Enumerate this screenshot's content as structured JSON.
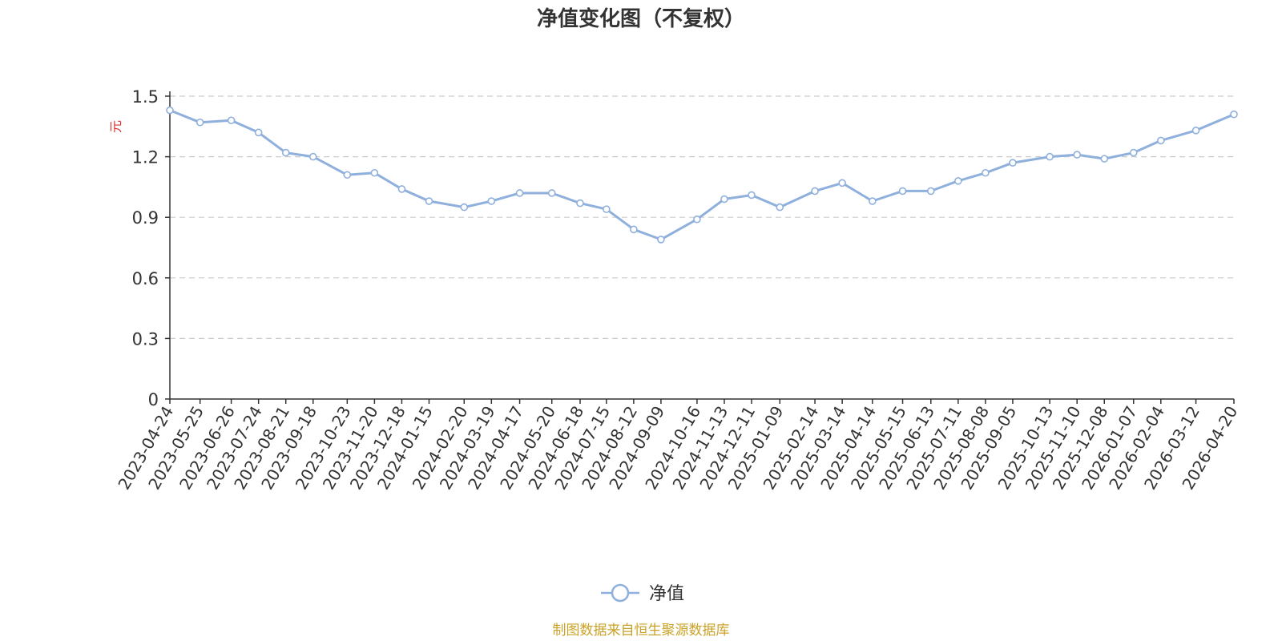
{
  "colors": {
    "line": "#8fb0dc",
    "unit": "#e03030",
    "source": "#c9a227",
    "grid": "#cccccc",
    "axis": "#333333"
  },
  "chart_data": {
    "type": "line",
    "title": "净值变化图（不复权）",
    "ylabel": "元",
    "ylim": [
      0,
      1.5
    ],
    "yticks": [
      "0",
      "0.3",
      "0.6",
      "0.9",
      "1.2",
      "1.5"
    ],
    "grid": true,
    "legend_position": "bottom-center",
    "x_labels": [
      "2023-04-24",
      "2023-05-25",
      "2023-06-26",
      "2023-07-24",
      "2023-08-21",
      "2023-09-18",
      "2023-10-23",
      "2023-11-20",
      "2023-12-18",
      "2024-01-15",
      "2024-02-20",
      "2024-03-19",
      "2024-04-17",
      "2024-05-20",
      "2024-06-18",
      "2024-07-15",
      "2024-08-12",
      "2024-09-09",
      "2024-10-16",
      "2024-11-13",
      "2024-12-11",
      "2025-01-09",
      "2025-02-14",
      "2025-03-14",
      "2025-04-14",
      "2025-05-15",
      "2025-06-13",
      "2025-07-11",
      "2025-08-08",
      "2025-09-05",
      "2025-10-13",
      "2025-11-10",
      "2025-12-08",
      "2026-01-07",
      "2026-02-04",
      "2026-03-12",
      "2026-04-20"
    ],
    "series": [
      {
        "name": "净值",
        "x": [
          "2023-04-24",
          "2023-05-25",
          "2023-06-26",
          "2023-07-24",
          "2023-08-21",
          "2023-09-18",
          "2023-10-23",
          "2023-11-20",
          "2023-12-18",
          "2024-01-15",
          "2024-02-20",
          "2024-03-19",
          "2024-04-17",
          "2024-05-20",
          "2024-06-18",
          "2024-07-15",
          "2024-08-12",
          "2024-09-09",
          "2024-10-16",
          "2024-11-13",
          "2024-12-11",
          "2025-01-09",
          "2025-02-14",
          "2025-03-14",
          "2025-04-14",
          "2025-05-15",
          "2025-06-13",
          "2025-07-11",
          "2025-08-08",
          "2025-09-05",
          "2025-10-13",
          "2025-11-10",
          "2025-12-08",
          "2026-01-07",
          "2026-02-04",
          "2026-03-12",
          "2026-04-20"
        ],
        "values": [
          1.43,
          1.37,
          1.38,
          1.32,
          1.22,
          1.2,
          1.11,
          1.12,
          1.04,
          0.98,
          0.95,
          0.98,
          1.02,
          1.02,
          0.97,
          0.94,
          0.84,
          0.79,
          0.89,
          0.99,
          1.01,
          0.95,
          1.03,
          1.07,
          0.98,
          1.03,
          1.03,
          1.08,
          1.12,
          1.17,
          1.2,
          1.21,
          1.19,
          1.22,
          1.28,
          1.33,
          1.41
        ]
      }
    ]
  },
  "legend": {
    "label": "净值"
  },
  "footer": {
    "source": "制图数据来自恒生聚源数据库"
  }
}
